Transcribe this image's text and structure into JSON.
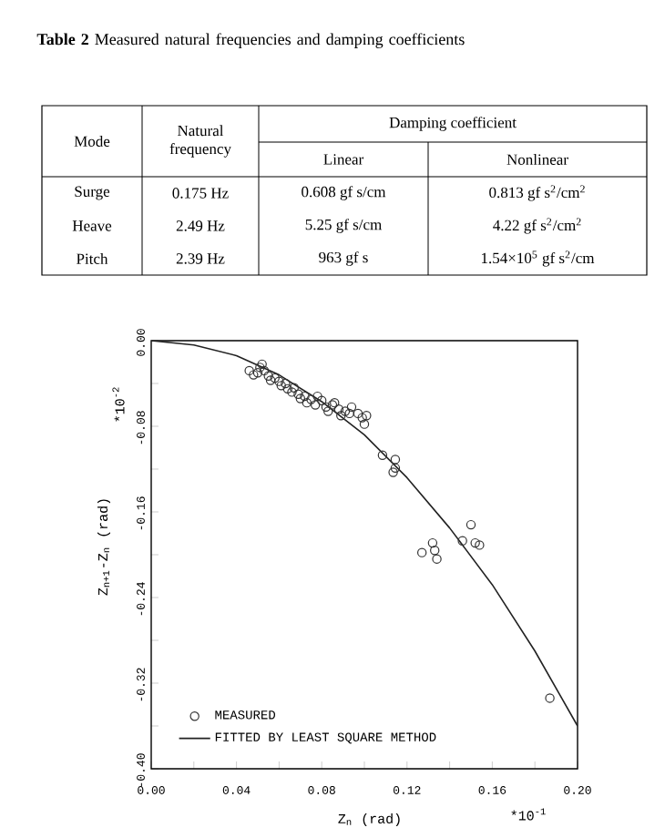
{
  "chart_data": [
    {
      "type": "other",
      "title": "**Table 2** Measured natural frequencies and damping coefficients",
      "annotations": [
        "Mode",
        "Natural frequency",
        "Damping coefficient",
        "Linear",
        "Nonlinear",
        "Surge",
        "0.175 Hz",
        "0.608 gf s/cm",
        "0.813 gf s$^{2}$/cm$^{2}$",
        "Heave",
        "2.49 Hz",
        "5.25 gf s/cm",
        "4.22 gf s$^{2}$/cm$^{2}$",
        "Pitch",
        "2.39 Hz",
        "963 gf s",
        "1.54×10$^{5}$ gf s$^{2}$/cm"
      ]
    },
    {
      "type": "scatter",
      "xlabel": "Z$_{n}$ (rad)",
      "ylabel": "Z$_{n+1}$-Z$_{n}$ (rad)",
      "annotations": [
        "*10$^{-2}$",
        "*10$^{-1}$"
      ],
      "xlim": [
        0,
        0.2
      ],
      "ylim": [
        -0.4,
        0
      ],
      "xticks": [
        {
          "value": 0,
          "label": "0.00"
        },
        {
          "value": 0.02,
          "label": null
        },
        {
          "value": 0.04,
          "label": "0.04"
        },
        {
          "value": 0.06,
          "label": null
        },
        {
          "value": 0.08,
          "label": "0.08"
        },
        {
          "value": 0.1,
          "label": null
        },
        {
          "value": 0.12,
          "label": "0.12"
        },
        {
          "value": 0.14,
          "label": null
        },
        {
          "value": 0.16,
          "label": "0.16"
        },
        {
          "value": 0.18,
          "label": null
        },
        {
          "value": 0.2,
          "label": "0.20"
        }
      ],
      "yticks": [
        {
          "value": 0,
          "label": "0.00"
        },
        {
          "value": -0.04,
          "label": null
        },
        {
          "value": -0.08,
          "label": "-0.08"
        },
        {
          "value": -0.12,
          "label": null
        },
        {
          "value": -0.16,
          "label": "-0.16"
        },
        {
          "value": -0.2,
          "label": null
        },
        {
          "value": -0.24,
          "label": "-0.24"
        },
        {
          "value": -0.28,
          "label": null
        },
        {
          "value": -0.32,
          "label": "-0.32"
        },
        {
          "value": -0.36,
          "label": null
        },
        {
          "value": -0.4,
          "label": "-0.40"
        }
      ],
      "legend": "bottom left",
      "series": [
        {
          "name": "MEASURED",
          "type": "scatter",
          "marker": "circle",
          "color": "#333333",
          "x": [
            0.046,
            0.048,
            0.05,
            0.051,
            0.052,
            0.053,
            0.055,
            0.056,
            0.058,
            0.06,
            0.061,
            0.063,
            0.064,
            0.066,
            0.067,
            0.069,
            0.07,
            0.072,
            0.073,
            0.075,
            0.077,
            0.078,
            0.08,
            0.082,
            0.083,
            0.085,
            0.086,
            0.088,
            0.089,
            0.091,
            0.093,
            0.094,
            0.097,
            0.099,
            0.101,
            0.1,
            0.1085,
            0.1145,
            0.1145,
            0.1135,
            0.127,
            0.132,
            0.133,
            0.134,
            0.15,
            0.146,
            0.152,
            0.154,
            0.187
          ],
          "values": [
            -0.028,
            -0.032,
            -0.03,
            -0.025,
            -0.022,
            -0.028,
            -0.033,
            -0.037,
            -0.035,
            -0.038,
            -0.042,
            -0.04,
            -0.045,
            -0.048,
            -0.044,
            -0.05,
            -0.054,
            -0.052,
            -0.058,
            -0.055,
            -0.06,
            -0.052,
            -0.056,
            -0.062,
            -0.066,
            -0.06,
            -0.058,
            -0.064,
            -0.07,
            -0.066,
            -0.068,
            -0.062,
            -0.068,
            -0.072,
            -0.07,
            -0.078,
            -0.107,
            -0.111,
            -0.119,
            -0.123,
            -0.198,
            -0.189,
            -0.196,
            -0.204,
            -0.172,
            -0.187,
            -0.189,
            -0.191,
            -0.334
          ]
        },
        {
          "name": "FITTED BY LEAST SQUARE METHOD",
          "type": "line",
          "marker": "none",
          "line_style": "solid",
          "color": "#222222",
          "x": [
            0,
            0.02,
            0.04,
            0.06,
            0.08,
            0.1,
            0.12,
            0.14,
            0.16,
            0.18,
            0.2
          ],
          "values": [
            0,
            -0.004,
            -0.014,
            -0.032,
            -0.057,
            -0.088,
            -0.128,
            -0.175,
            -0.228,
            -0.29,
            -0.36
          ]
        }
      ]
    }
  ]
}
